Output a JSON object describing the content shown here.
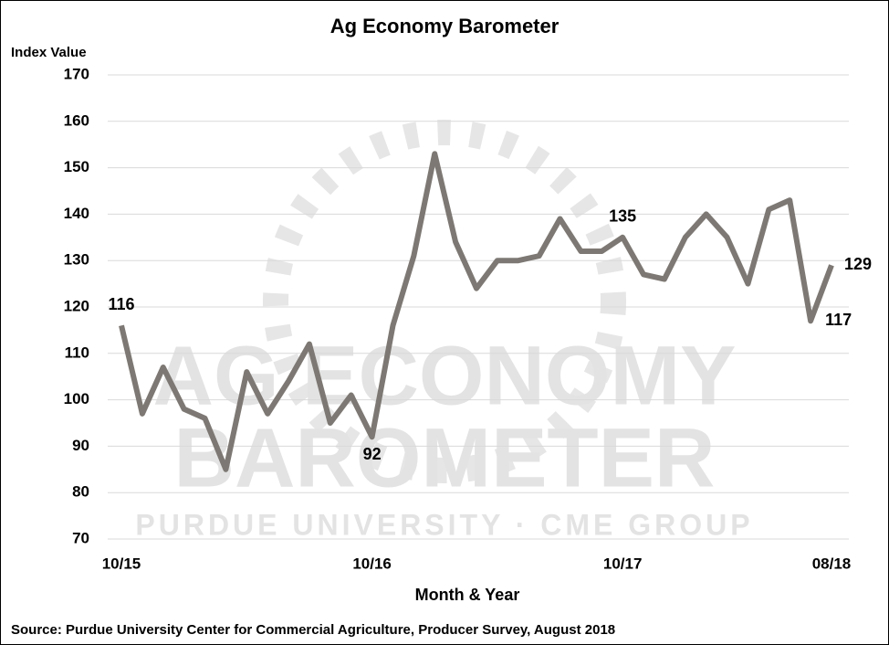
{
  "chart_data": {
    "type": "line",
    "title": "Ag Economy Barometer",
    "y_label": "Index Value",
    "x_label": "Month & Year",
    "source": "Source: Purdue University Center for Commercial Agriculture, Producer Survey, August 2018",
    "watermark": [
      "AG ECONOMY",
      "BAROMETER",
      "PURDUE UNIVERSITY · CME GROUP"
    ],
    "categories": [
      "10/15",
      null,
      null,
      null,
      null,
      null,
      null,
      null,
      null,
      null,
      null,
      null,
      "10/16",
      null,
      null,
      null,
      null,
      null,
      null,
      null,
      null,
      null,
      null,
      null,
      "10/17",
      null,
      null,
      null,
      null,
      null,
      null,
      null,
      null,
      null,
      "08/18"
    ],
    "series": [
      {
        "name": "Index Value",
        "color": "#7d7873",
        "values": [
          116,
          97,
          107,
          98,
          96,
          85,
          106,
          97,
          104,
          112,
          95,
          101,
          92,
          116,
          131,
          153,
          134,
          124,
          130,
          130,
          131,
          139,
          132,
          132,
          135,
          127,
          126,
          135,
          140,
          135,
          125,
          141,
          143,
          117,
          129
        ],
        "value_labels": [
          "116",
          null,
          null,
          null,
          null,
          null,
          null,
          null,
          null,
          null,
          null,
          null,
          "92",
          null,
          null,
          null,
          null,
          null,
          null,
          null,
          null,
          null,
          null,
          null,
          "135",
          null,
          null,
          null,
          null,
          null,
          null,
          null,
          null,
          "117",
          "129"
        ]
      }
    ],
    "ylim": [
      70,
      170
    ],
    "yticks": [
      70,
      80,
      90,
      100,
      110,
      120,
      130,
      140,
      150,
      160,
      170
    ],
    "grid": true
  }
}
